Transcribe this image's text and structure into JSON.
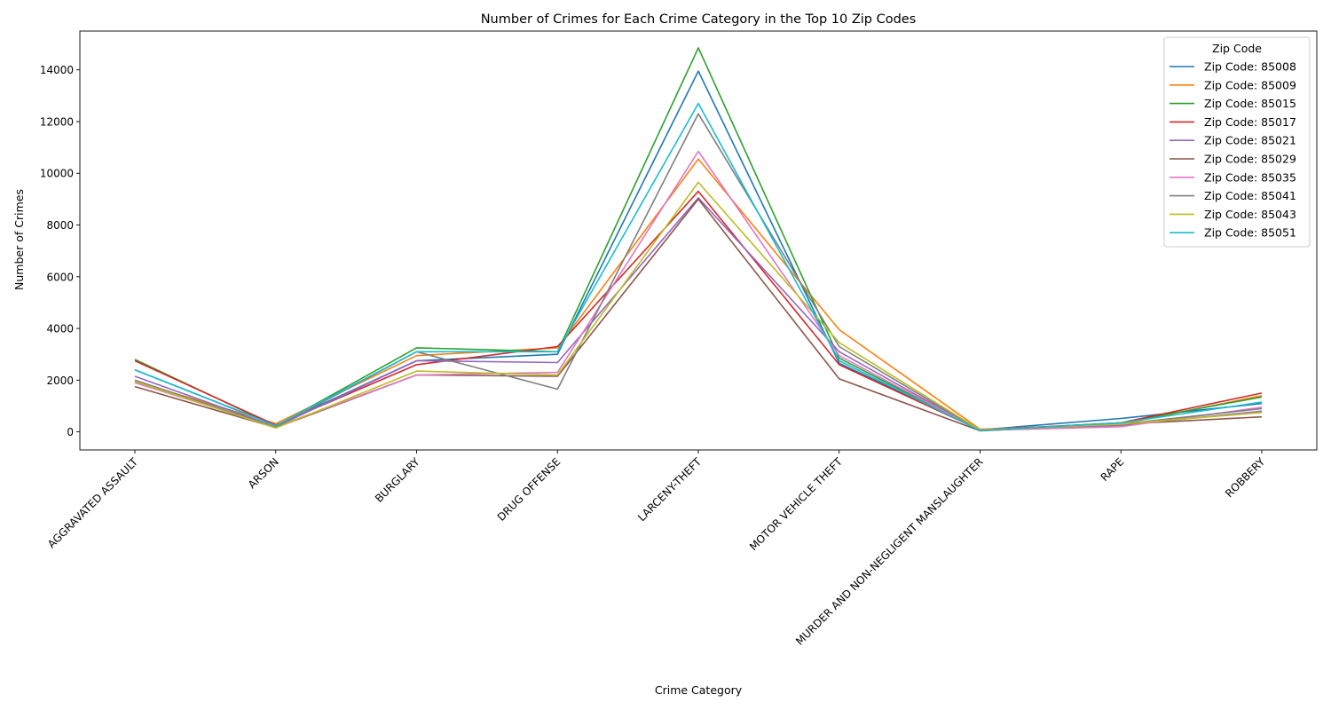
{
  "chart_data": {
    "type": "line",
    "title": "Number of Crimes for Each Crime Category in the Top 10 Zip Codes",
    "xlabel": "Crime Category",
    "ylabel": "Number of Crimes",
    "ylim": [
      -700,
      15500
    ],
    "yticks": [
      0,
      2000,
      4000,
      6000,
      8000,
      10000,
      12000,
      14000
    ],
    "grid": false,
    "legend": {
      "title": "Zip Code",
      "placement": "top-right"
    },
    "categories": [
      "AGGRAVATED ASSAULT",
      "ARSON",
      "BURGLARY",
      "DRUG OFFENSE",
      "LARCENY-THEFT",
      "MOTOR VEHICLE THEFT",
      "MURDER AND NON-NEGLIGENT MANSLAUGHTER",
      "RAPE",
      "ROBBERY"
    ],
    "series": [
      {
        "name": "Zip Code: 85008",
        "color": "#1f77b4",
        "values": [
          2400,
          250,
          2750,
          3000,
          13950,
          2650,
          80,
          520,
          1100
        ]
      },
      {
        "name": "Zip Code: 85009",
        "color": "#ff7f0e",
        "values": [
          1950,
          320,
          2950,
          3250,
          10550,
          3950,
          100,
          300,
          1400
        ]
      },
      {
        "name": "Zip Code: 85015",
        "color": "#2ca02c",
        "values": [
          2800,
          220,
          3250,
          3100,
          14850,
          2850,
          60,
          350,
          1350
        ]
      },
      {
        "name": "Zip Code: 85017",
        "color": "#d62728",
        "values": [
          2750,
          260,
          2600,
          3300,
          9300,
          2600,
          70,
          350,
          1500
        ]
      },
      {
        "name": "Zip Code: 85021",
        "color": "#9467bd",
        "values": [
          2150,
          200,
          2750,
          2680,
          9050,
          3100,
          50,
          250,
          800
        ]
      },
      {
        "name": "Zip Code: 85029",
        "color": "#8c564b",
        "values": [
          1750,
          160,
          2200,
          2150,
          9000,
          2050,
          40,
          300,
          580
        ]
      },
      {
        "name": "Zip Code: 85035",
        "color": "#e377c2",
        "values": [
          1900,
          200,
          2200,
          2300,
          10850,
          2950,
          60,
          200,
          950
        ]
      },
      {
        "name": "Zip Code: 85041",
        "color": "#7f7f7f",
        "values": [
          2000,
          180,
          3100,
          1650,
          12300,
          3300,
          50,
          300,
          900
        ]
      },
      {
        "name": "Zip Code: 85043",
        "color": "#bcbd22",
        "values": [
          1950,
          150,
          2350,
          2200,
          9650,
          3450,
          70,
          300,
          750
        ]
      },
      {
        "name": "Zip Code: 85051",
        "color": "#17becf",
        "values": [
          2400,
          240,
          3100,
          3100,
          12700,
          2750,
          50,
          350,
          1150
        ]
      }
    ]
  }
}
